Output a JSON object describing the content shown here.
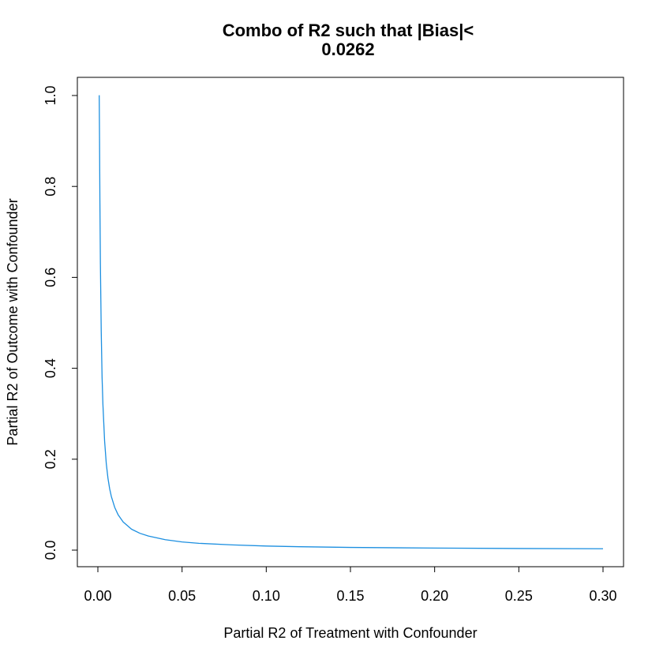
{
  "chart_data": {
    "type": "line",
    "title_line1": "Combo of R2 such that |Bias|<",
    "title_line2": "0.0262",
    "xlabel": "Partial R2 of Treatment with Confounder",
    "ylabel": "Partial R2 of Outcome with Confounder",
    "xlim": [
      0,
      0.3
    ],
    "ylim": [
      0,
      1
    ],
    "xticks": [
      0.0,
      0.05,
      0.1,
      0.15,
      0.2,
      0.25,
      0.3
    ],
    "xtick_labels": [
      "0.00",
      "0.05",
      "0.10",
      "0.15",
      "0.20",
      "0.25",
      "0.30"
    ],
    "yticks": [
      0.0,
      0.2,
      0.4,
      0.6,
      0.8,
      1.0
    ],
    "ytick_labels": [
      "0.0",
      "0.2",
      "0.4",
      "0.6",
      "0.8",
      "1.0"
    ],
    "grid": false,
    "series": [
      {
        "color": "#1c8fe0",
        "x": [
          0.0007,
          0.0008,
          0.001,
          0.0012,
          0.0015,
          0.002,
          0.0025,
          0.003,
          0.004,
          0.005,
          0.006,
          0.007,
          0.008,
          0.01,
          0.012,
          0.015,
          0.02,
          0.025,
          0.03,
          0.04,
          0.05,
          0.06,
          0.08,
          0.1,
          0.12,
          0.15,
          0.2,
          0.25,
          0.3
        ],
        "y": [
          1.0,
          1.0,
          0.9,
          0.77,
          0.63,
          0.48,
          0.38,
          0.32,
          0.24,
          0.19,
          0.158,
          0.135,
          0.118,
          0.094,
          0.078,
          0.062,
          0.046,
          0.037,
          0.031,
          0.023,
          0.018,
          0.015,
          0.0115,
          0.009,
          0.0075,
          0.006,
          0.0045,
          0.0036,
          0.003
        ]
      }
    ]
  }
}
